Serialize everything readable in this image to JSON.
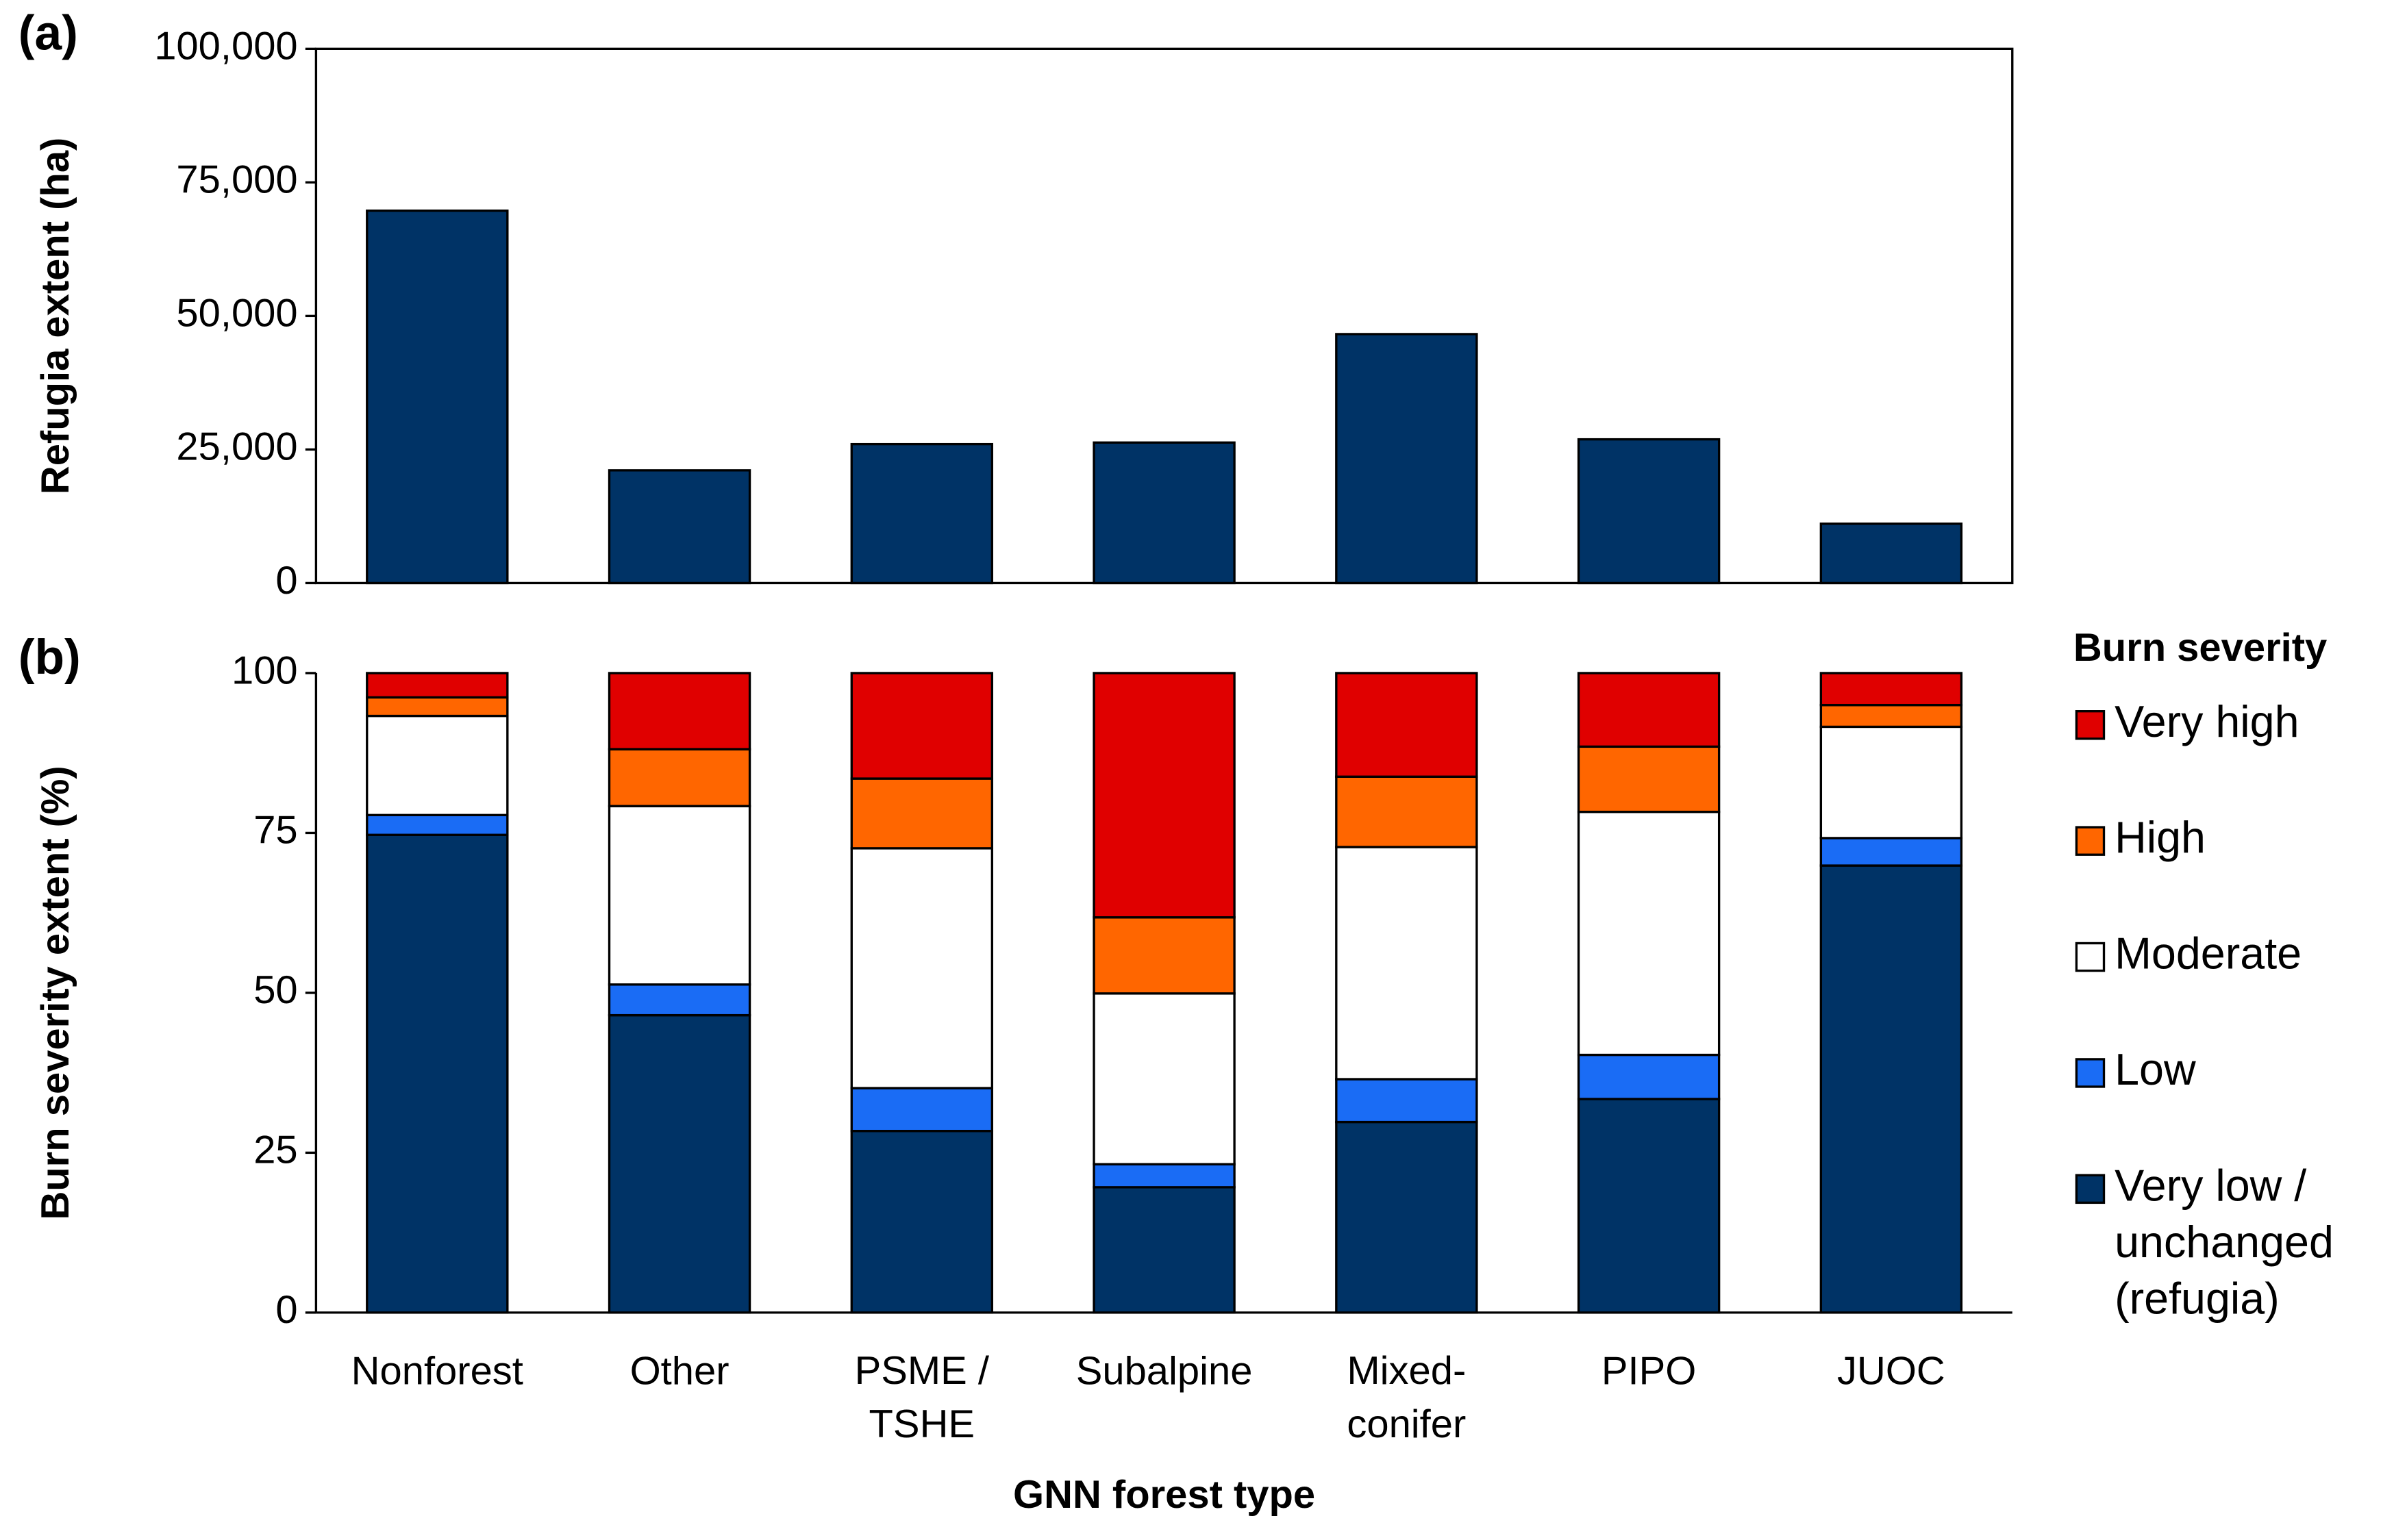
{
  "chart_data": [
    {
      "type": "bar",
      "panel_label": "(a)",
      "y_label": "Refugia extent (ha)",
      "categories": [
        "Nonforest",
        "Other",
        "PSME /\nTSHE",
        "Subalpine",
        "Mixed-\nconifer",
        "PIPO",
        "JUOC"
      ],
      "values": [
        69700,
        21100,
        26000,
        26300,
        46600,
        26900,
        11100
      ],
      "color": "#003366",
      "ylim": [
        0,
        100000
      ],
      "yticks": [
        0,
        {
          "value": 25000,
          "label": "25,000"
        },
        {
          "value": 50000,
          "label": "50,000"
        },
        {
          "value": 75000,
          "label": "75,000"
        },
        {
          "value": 100000,
          "label": "100,000"
        }
      ]
    },
    {
      "type": "stacked_bar",
      "panel_label": "(b)",
      "y_label": "Burn severity extent (%)",
      "x_label": "GNN forest type",
      "legend_title": "Burn severity",
      "series": [
        {
          "name": "Very low /\nunchanged\n(refugia)",
          "color": "#003366",
          "values": [
            74.7,
            46.5,
            28.4,
            19.6,
            29.8,
            33.4,
            69.9
          ]
        },
        {
          "name": "Low",
          "color": "#1a6cf5",
          "values": [
            3.1,
            4.8,
            6.7,
            3.6,
            6.7,
            6.9,
            4.3
          ]
        },
        {
          "name": "Moderate",
          "color": "#ffffff",
          "values": [
            15.5,
            27.9,
            37.5,
            26.7,
            36.3,
            38.0,
            17.4
          ]
        },
        {
          "name": "High",
          "color": "#ff6600",
          "values": [
            2.9,
            8.9,
            10.9,
            11.9,
            11.0,
            10.2,
            3.4
          ]
        },
        {
          "name": "Very high",
          "color": "#e00000",
          "values": [
            3.8,
            11.9,
            16.5,
            38.2,
            16.2,
            11.5,
            5.0
          ]
        }
      ],
      "ylim": [
        0,
        100
      ],
      "yticks": [
        0,
        25,
        50,
        75,
        100
      ]
    }
  ]
}
